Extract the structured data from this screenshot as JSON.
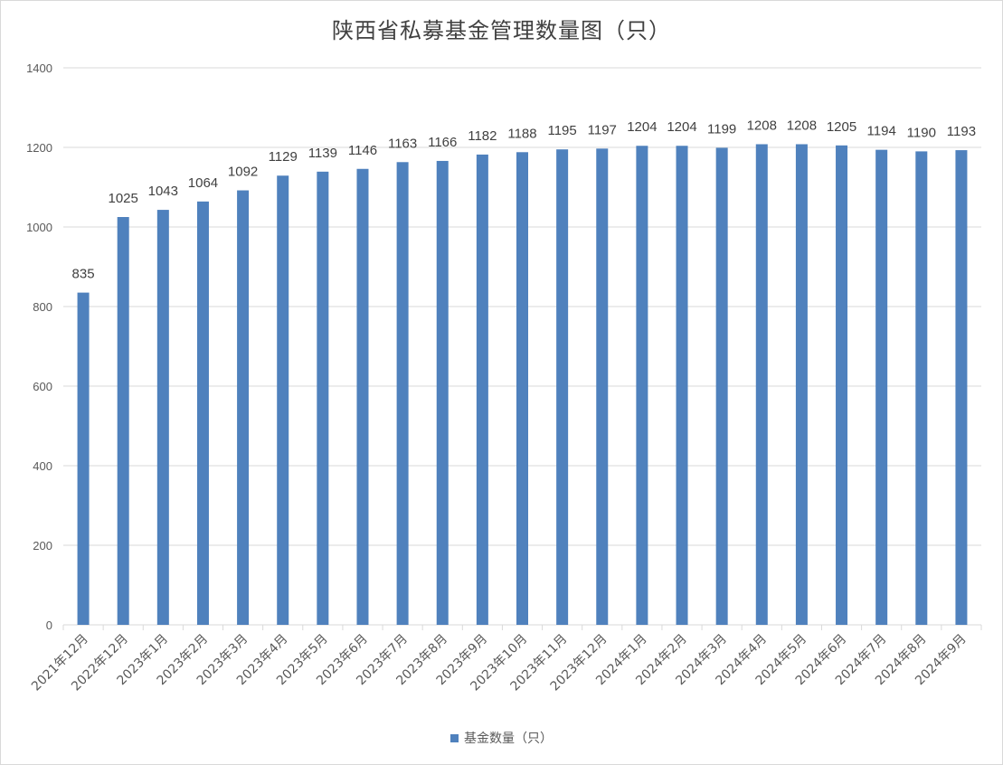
{
  "chart_data": {
    "type": "bar",
    "title": "陕西省私募基金管理数量图（只）",
    "xlabel": "",
    "ylabel": "",
    "ylim": [
      0,
      1400
    ],
    "yticks": [
      0,
      200,
      400,
      600,
      800,
      1000,
      1200,
      1400
    ],
    "grid": true,
    "legend_position": "bottom",
    "categories": [
      "2021年12月",
      "2022年12月",
      "2023年1月",
      "2023年2月",
      "2023年3月",
      "2023年4月",
      "2023年5月",
      "2023年6月",
      "2023年7月",
      "2023年8月",
      "2023年9月",
      "2023年10月",
      "2023年11月",
      "2023年12月",
      "2024年1月",
      "2024年2月",
      "2024年3月",
      "2024年4月",
      "2024年5月",
      "2024年6月",
      "2024年7月",
      "2024年8月",
      "2024年9月"
    ],
    "series": [
      {
        "name": "基金数量（只）",
        "color": "#4f81bd",
        "values": [
          835,
          1025,
          1043,
          1064,
          1092,
          1129,
          1139,
          1146,
          1163,
          1166,
          1182,
          1188,
          1195,
          1197,
          1204,
          1204,
          1199,
          1208,
          1208,
          1205,
          1194,
          1190,
          1193
        ]
      }
    ]
  }
}
